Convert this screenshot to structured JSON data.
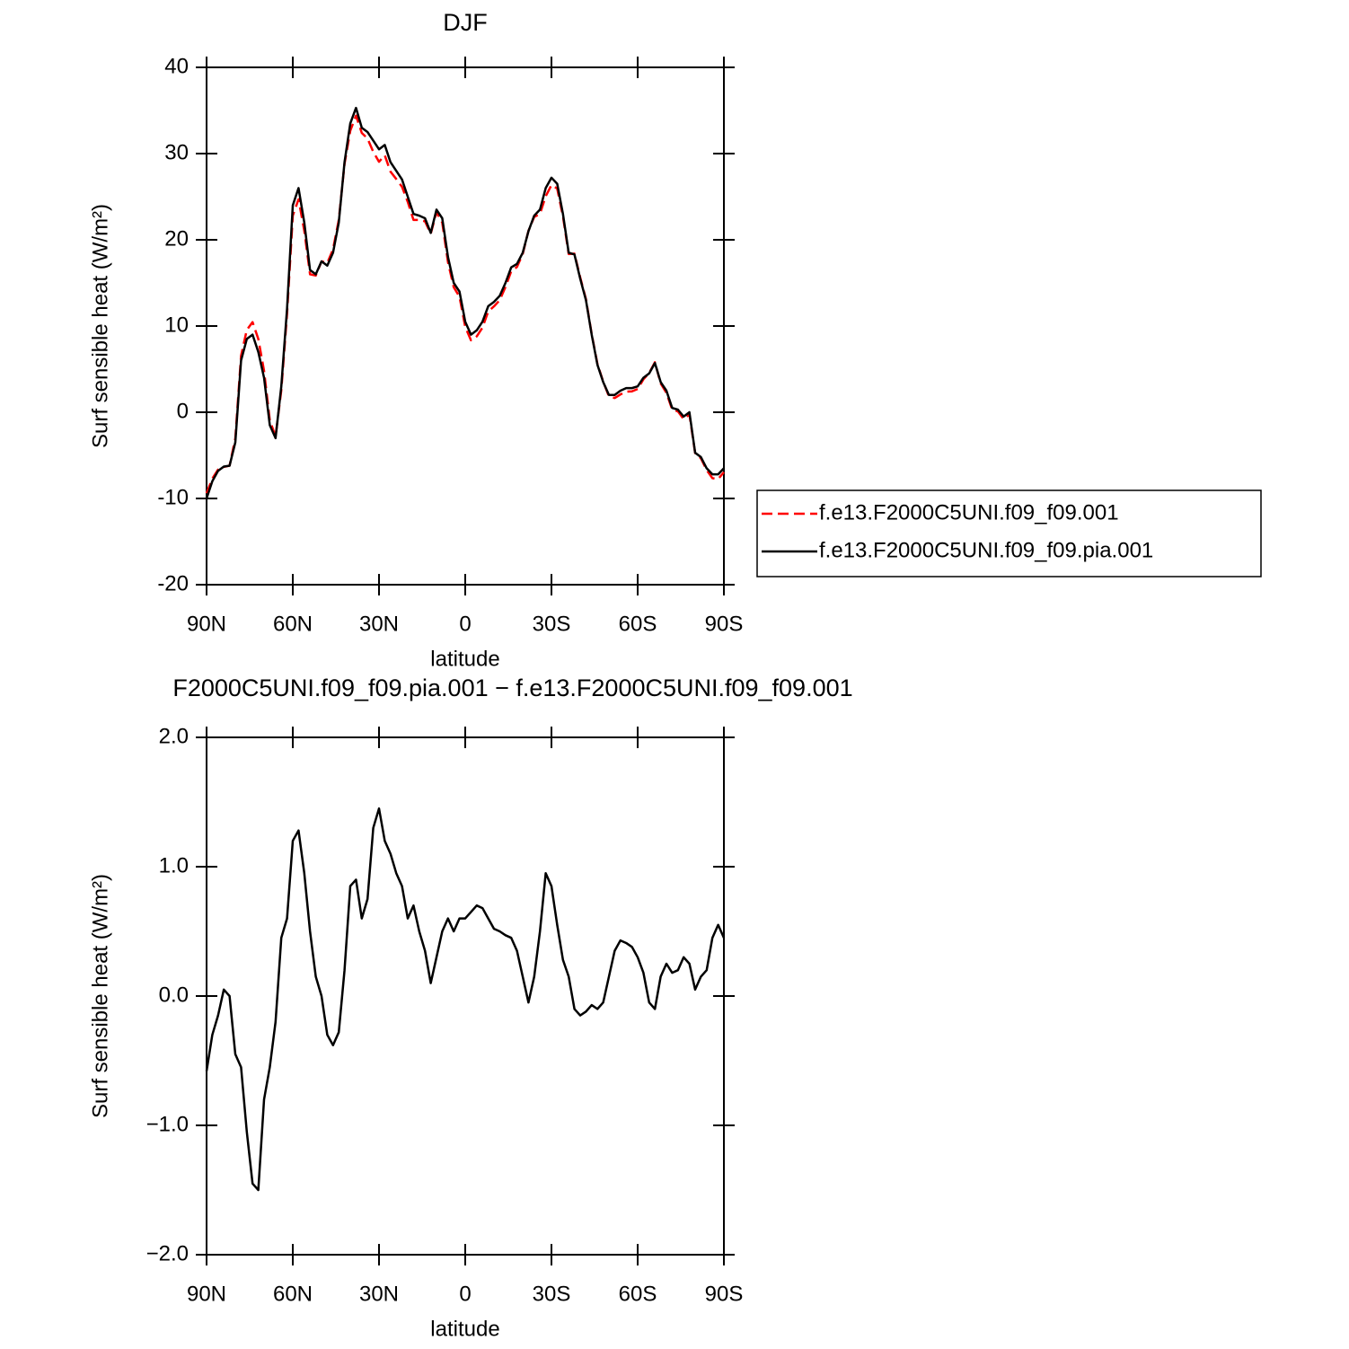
{
  "chart_data": [
    {
      "type": "line",
      "title": "DJF",
      "x_label": "latitude",
      "y_label": "Surf sensible heat (W/m²)",
      "x": [
        90,
        88,
        86,
        84,
        82,
        80,
        78,
        76,
        74,
        72,
        70,
        68,
        66,
        64,
        62,
        60,
        58,
        56,
        54,
        52,
        50,
        48,
        46,
        44,
        42,
        40,
        38,
        36,
        34,
        32,
        30,
        28,
        26,
        24,
        22,
        20,
        18,
        16,
        14,
        12,
        10,
        8,
        6,
        4,
        2,
        0,
        -2,
        -4,
        -6,
        -8,
        -10,
        -12,
        -14,
        -16,
        -18,
        -20,
        -22,
        -24,
        -26,
        -28,
        -30,
        -32,
        -34,
        -36,
        -38,
        -40,
        -42,
        -44,
        -46,
        -48,
        -50,
        -52,
        -54,
        -56,
        -58,
        -60,
        -62,
        -64,
        -66,
        -68,
        -70,
        -72,
        -74,
        -76,
        -78,
        -80,
        -82,
        -84,
        -86,
        -88,
        -90
      ],
      "series": [
        {
          "name": "f.e13.F2000C5UNI.f09_f09.001",
          "color": "#ff0000",
          "dashed": true,
          "values": [
            -9.4,
            -7.7,
            -6.65,
            -6.35,
            -6.2,
            -3.05,
            6.55,
            9.55,
            10.45,
            8.5,
            4.8,
            -0.95,
            -2.8,
            2.55,
            11.4,
            22.8,
            24.7,
            21.05,
            16,
            15.85,
            17.5,
            17.3,
            18.9,
            22.3,
            28.8,
            32.65,
            34.4,
            32.4,
            31.75,
            30.2,
            29.05,
            29.8,
            27.9,
            27.05,
            26.15,
            24.4,
            22.3,
            22.3,
            22.15,
            20.7,
            23.2,
            22,
            17.4,
            14.5,
            13.4,
            9.9,
            8.35,
            8.8,
            9.82,
            11.7,
            12.28,
            13,
            14.53,
            16.35,
            16.85,
            18.35,
            21.05,
            22.65,
            23,
            25.05,
            26.35,
            25.95,
            22.72,
            18.35,
            18.4,
            15.65,
            13.12,
            9.07,
            5.6,
            3.55,
            1.85,
            1.65,
            2.07,
            2.39,
            2.42,
            2.7,
            3.82,
            4.55,
            5.8,
            3.35,
            2.25,
            0.32,
            0.1,
            -0.8,
            -0.25,
            -4.75,
            -5.35,
            -6.7,
            -7.65,
            -7.75,
            -6.95
          ]
        },
        {
          "name": "f.e13.F2000C5UNI.f09_f09.pia.001",
          "color": "#000000",
          "dashed": false,
          "values": [
            -10,
            -8,
            -6.8,
            -6.3,
            -6.2,
            -3.5,
            6,
            8.5,
            9,
            7,
            4,
            -1.5,
            -3,
            3,
            12,
            24,
            26,
            22,
            16.5,
            16,
            17.5,
            17,
            18.5,
            22,
            29,
            33.5,
            35.3,
            33,
            32.5,
            31.5,
            30.5,
            31,
            29,
            28,
            27,
            25,
            23,
            22.8,
            22.5,
            20.8,
            23.5,
            22.5,
            18,
            15,
            14,
            10.5,
            9,
            9.5,
            10.5,
            12.3,
            12.8,
            13.5,
            15,
            16.8,
            17.2,
            18.5,
            21,
            22.8,
            23.5,
            26,
            27.2,
            26.5,
            23,
            18.5,
            18.3,
            15.5,
            13,
            9,
            5.5,
            3.5,
            2,
            2,
            2.5,
            2.8,
            2.8,
            3,
            4,
            4.5,
            5.7,
            3.5,
            2.5,
            0.5,
            0.3,
            -0.5,
            0,
            -4.7,
            -5.2,
            -6.5,
            -7.2,
            -7.2,
            -6.5
          ]
        }
      ],
      "xlim": [
        90,
        -90
      ],
      "xticks": [
        {
          "value": 90,
          "label": "90N"
        },
        {
          "value": 60,
          "label": "60N"
        },
        {
          "value": 30,
          "label": "30N"
        },
        0,
        {
          "value": -30,
          "label": "30S"
        },
        {
          "value": -60,
          "label": "60S"
        },
        {
          "value": -90,
          "label": "90S"
        }
      ],
      "ylim": [
        -20,
        40
      ],
      "yticks": [
        40,
        30,
        20,
        10,
        0,
        -10,
        -20
      ],
      "legend": "right"
    },
    {
      "type": "line",
      "title": "F2000C5UNI.f09_f09.pia.001 − f.e13.F2000C5UNI.f09_f09.001",
      "x_label": "latitude",
      "y_label": "Surf sensible heat (W/m²)",
      "x": [
        90,
        88,
        86,
        84,
        82,
        80,
        78,
        76,
        74,
        72,
        70,
        68,
        66,
        64,
        62,
        60,
        58,
        56,
        54,
        52,
        50,
        48,
        46,
        44,
        42,
        40,
        38,
        36,
        34,
        32,
        30,
        28,
        26,
        24,
        22,
        20,
        18,
        16,
        14,
        12,
        10,
        8,
        6,
        4,
        2,
        0,
        -2,
        -4,
        -6,
        -8,
        -10,
        -12,
        -14,
        -16,
        -18,
        -20,
        -22,
        -24,
        -26,
        -28,
        -30,
        -32,
        -34,
        -36,
        -38,
        -40,
        -42,
        -44,
        -46,
        -48,
        -50,
        -52,
        -54,
        -56,
        -58,
        -60,
        -62,
        -64,
        -66,
        -68,
        -70,
        -72,
        -74,
        -76,
        -78,
        -80,
        -82,
        -84,
        -86,
        -88,
        -90
      ],
      "series": [
        {
          "color": "#000000",
          "dashed": false,
          "values": [
            -0.58,
            -0.3,
            -0.15,
            0.05,
            0,
            -0.45,
            -0.55,
            -1.05,
            -1.45,
            -1.5,
            -0.8,
            -0.55,
            -0.2,
            0.45,
            0.6,
            1.2,
            1.28,
            0.95,
            0.5,
            0.15,
            0,
            -0.3,
            -0.38,
            -0.28,
            0.2,
            0.85,
            0.9,
            0.6,
            0.75,
            1.3,
            1.45,
            1.2,
            1.1,
            0.95,
            0.85,
            0.6,
            0.7,
            0.5,
            0.35,
            0.1,
            0.3,
            0.5,
            0.6,
            0.5,
            0.6,
            0.6,
            0.65,
            0.7,
            0.68,
            0.6,
            0.52,
            0.5,
            0.47,
            0.45,
            0.35,
            0.15,
            -0.05,
            0.15,
            0.5,
            0.95,
            0.85,
            0.55,
            0.28,
            0.15,
            -0.1,
            -0.15,
            -0.12,
            -0.07,
            -0.1,
            -0.05,
            0.15,
            0.35,
            0.43,
            0.41,
            0.38,
            0.3,
            0.18,
            -0.05,
            -0.1,
            0.15,
            0.25,
            0.18,
            0.2,
            0.3,
            0.25,
            0.05,
            0.15,
            0.2,
            0.45,
            0.55,
            0.45
          ]
        }
      ],
      "xlim": [
        90,
        -90
      ],
      "xticks": [
        {
          "value": 90,
          "label": "90N"
        },
        {
          "value": 60,
          "label": "60N"
        },
        {
          "value": 30,
          "label": "30N"
        },
        0,
        {
          "value": -30,
          "label": "30S"
        },
        {
          "value": -60,
          "label": "60S"
        },
        {
          "value": -90,
          "label": "90S"
        }
      ],
      "ylim": [
        -2,
        2
      ],
      "yticks": [
        {
          "value": 2,
          "label": "2.0"
        },
        {
          "value": 1,
          "label": "1.0"
        },
        {
          "value": 0,
          "label": "0.0"
        },
        {
          "value": -1,
          "label": "−1.0"
        },
        {
          "value": -2,
          "label": "−2.0"
        }
      ]
    }
  ]
}
